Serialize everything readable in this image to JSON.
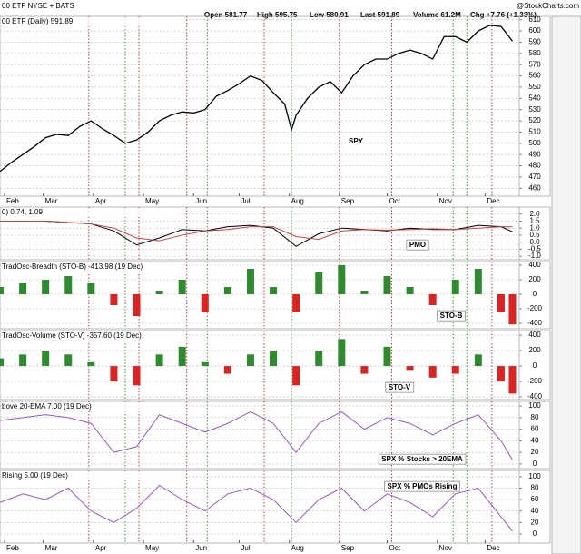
{
  "header": {
    "symbol": "00 ETF NYSE + BATS",
    "quote": [
      "Open 581.77",
      "High 595.75",
      "Low 580.91",
      "Last 591.89",
      "Volume 61.2M",
      "Chg +7.76 (+1.33%)"
    ],
    "watermark": "@StockCharts.com"
  },
  "signal_lines": {
    "red": [
      39,
      61,
      82,
      116,
      149,
      172,
      216
    ],
    "green": [
      55,
      91,
      128,
      199,
      205
    ]
  },
  "chart_data": [
    {
      "type": "line",
      "title": "00 ETF (Daily) 591.89",
      "annotation": "SPY",
      "xlim": [
        0,
        228
      ],
      "xticks": [
        {
          "value": 2,
          "label": "Feb"
        },
        {
          "value": 19,
          "label": "Mar"
        },
        {
          "value": 41,
          "label": "Apr"
        },
        {
          "value": 63,
          "label": "May"
        },
        {
          "value": 85,
          "label": "Jun"
        },
        {
          "value": 105,
          "label": "Jul"
        },
        {
          "value": 127,
          "label": "Aug"
        },
        {
          "value": 149,
          "label": "Sep"
        },
        {
          "value": 170,
          "label": "Oct"
        },
        {
          "value": 192,
          "label": "Nov"
        },
        {
          "value": 213,
          "label": "Dec"
        }
      ],
      "ylim": [
        453,
        613
      ],
      "yticks": [
        460,
        470,
        480,
        490,
        500,
        510,
        520,
        530,
        540,
        550,
        560,
        570,
        580,
        590,
        600,
        610
      ],
      "grid": true,
      "x": [
        0,
        5,
        10,
        15,
        20,
        25,
        30,
        35,
        40,
        45,
        50,
        55,
        60,
        65,
        70,
        75,
        80,
        85,
        90,
        95,
        100,
        105,
        110,
        115,
        120,
        125,
        128,
        130,
        135,
        140,
        145,
        150,
        155,
        160,
        165,
        170,
        175,
        180,
        185,
        190,
        195,
        200,
        205,
        210,
        215,
        220,
        225
      ],
      "series": [
        {
          "color": "#000000",
          "values": [
            475,
            483,
            490,
            497,
            505,
            508,
            507,
            515,
            520,
            513,
            507,
            500,
            503,
            510,
            520,
            525,
            528,
            527,
            530,
            542,
            547,
            553,
            560,
            556,
            545,
            535,
            512,
            525,
            540,
            550,
            555,
            545,
            560,
            570,
            575,
            575,
            580,
            583,
            580,
            575,
            595,
            595,
            590,
            600,
            605,
            604,
            591
          ]
        }
      ]
    },
    {
      "type": "line",
      "title": "0) 0.74, 1.09",
      "annotation": "PMO",
      "xlim": [
        0,
        228
      ],
      "ylim": [
        -1.25,
        2.5
      ],
      "yticks": [
        {
          "value": -1,
          "label": "-1.0"
        },
        -0.5,
        {
          "value": 0,
          "label": "0.0"
        },
        0.5,
        {
          "value": 1,
          "label": "1.0"
        },
        1.5,
        {
          "value": 2,
          "label": "2.0"
        }
      ],
      "grid": true,
      "x": [
        0,
        10,
        20,
        30,
        40,
        50,
        60,
        70,
        80,
        90,
        100,
        110,
        120,
        130,
        140,
        150,
        160,
        170,
        180,
        190,
        200,
        210,
        220,
        225
      ],
      "series": [
        {
          "color": "#000000",
          "values": [
            1.5,
            1.5,
            1.5,
            1.4,
            1.3,
            0.8,
            -0.2,
            0.3,
            0.9,
            0.8,
            1.1,
            1.2,
            1.0,
            -0.3,
            0.6,
            1.0,
            0.9,
            0.8,
            1.0,
            0.9,
            0.9,
            1.2,
            1.1,
            0.74
          ]
        },
        {
          "color": "#d04040",
          "values": [
            1.5,
            1.5,
            1.5,
            1.4,
            1.3,
            1.0,
            0.3,
            0.1,
            0.5,
            0.8,
            0.9,
            1.1,
            1.1,
            0.4,
            0.2,
            0.8,
            0.9,
            0.85,
            0.9,
            0.95,
            0.9,
            1.0,
            1.1,
            1.09
          ]
        }
      ]
    },
    {
      "type": "bar",
      "title": "TradOsc-Breadth (STO-B) -413.98 (19 Dec)",
      "annotation": "STO-B",
      "xlim": [
        0,
        228
      ],
      "ylim": [
        -475,
        450
      ],
      "yticks": [
        -400,
        -200,
        0,
        200,
        400
      ],
      "grid": true,
      "x": [
        0,
        10,
        20,
        30,
        40,
        50,
        60,
        70,
        80,
        90,
        100,
        110,
        120,
        130,
        140,
        150,
        160,
        170,
        180,
        190,
        200,
        210,
        220,
        225
      ],
      "series": [
        {
          "color": "#2e8b2e",
          "negative_color": "#dd2222",
          "values": [
            100,
            150,
            200,
            250,
            150,
            -150,
            -300,
            50,
            200,
            -250,
            100,
            350,
            100,
            -250,
            300,
            400,
            50,
            250,
            100,
            -150,
            200,
            350,
            -250,
            -413.98
          ]
        }
      ]
    },
    {
      "type": "bar",
      "title": "TradOsc-Volume (STO-V) -357.60 (19 Dec)",
      "annotation": "STO-V",
      "xlim": [
        0,
        228
      ],
      "ylim": [
        -435,
        460
      ],
      "yticks": [
        -400,
        -200,
        0,
        200,
        400
      ],
      "grid": true,
      "x": [
        0,
        10,
        20,
        30,
        40,
        50,
        60,
        70,
        80,
        90,
        100,
        110,
        120,
        130,
        140,
        150,
        160,
        170,
        180,
        190,
        200,
        210,
        220,
        225
      ],
      "series": [
        {
          "color": "#2e8b2e",
          "negative_color": "#dd2222",
          "values": [
            100,
            150,
            200,
            150,
            50,
            -200,
            -250,
            150,
            250,
            50,
            -100,
            150,
            200,
            -250,
            200,
            350,
            -100,
            250,
            -50,
            -150,
            -100,
            150,
            -200,
            -357.6
          ]
        }
      ]
    },
    {
      "type": "line",
      "title": "bove 20-EMA 7.00 (19 Dec)",
      "annotation": "SPX % Stocks > 20EMA",
      "xlim": [
        0,
        228
      ],
      "ylim": [
        -8,
        108
      ],
      "yticks": [
        0,
        20,
        40,
        60,
        80,
        100
      ],
      "grid": true,
      "x": [
        0,
        10,
        20,
        30,
        40,
        50,
        60,
        70,
        80,
        90,
        100,
        110,
        120,
        130,
        140,
        150,
        160,
        170,
        180,
        190,
        200,
        210,
        220,
        225
      ],
      "series": [
        {
          "color": "#9955cc",
          "values": [
            75,
            80,
            85,
            80,
            70,
            20,
            30,
            85,
            70,
            55,
            70,
            90,
            70,
            20,
            70,
            90,
            60,
            80,
            70,
            50,
            70,
            85,
            40,
            7
          ]
        }
      ]
    },
    {
      "type": "line",
      "title": "Rising 5.00 (19 Dec)",
      "annotation": "SPX % PMOs Rising",
      "xlim": [
        0,
        228
      ],
      "xticks": [
        {
          "value": 2,
          "label": "Feb"
        },
        {
          "value": 19,
          "label": "Mar"
        },
        {
          "value": 41,
          "label": "Apr"
        },
        {
          "value": 63,
          "label": "May"
        },
        {
          "value": 85,
          "label": "Jun"
        },
        {
          "value": 105,
          "label": "Jul"
        },
        {
          "value": 127,
          "label": "Aug"
        },
        {
          "value": 149,
          "label": "Sep"
        },
        {
          "value": 170,
          "label": "Oct"
        },
        {
          "value": 192,
          "label": "Nov"
        },
        {
          "value": 213,
          "label": "Dec"
        }
      ],
      "ylim": [
        -16,
        111
      ],
      "yticks": [
        0,
        20,
        40,
        60,
        80,
        100
      ],
      "grid": true,
      "x": [
        0,
        10,
        20,
        30,
        40,
        50,
        60,
        70,
        80,
        90,
        100,
        110,
        120,
        130,
        140,
        150,
        160,
        170,
        180,
        190,
        200,
        210,
        220,
        225
      ],
      "series": [
        {
          "color": "#9955cc",
          "values": [
            55,
            70,
            60,
            80,
            40,
            20,
            45,
            85,
            60,
            40,
            70,
            80,
            60,
            20,
            60,
            80,
            40,
            70,
            55,
            30,
            70,
            80,
            30,
            5
          ]
        }
      ]
    }
  ]
}
